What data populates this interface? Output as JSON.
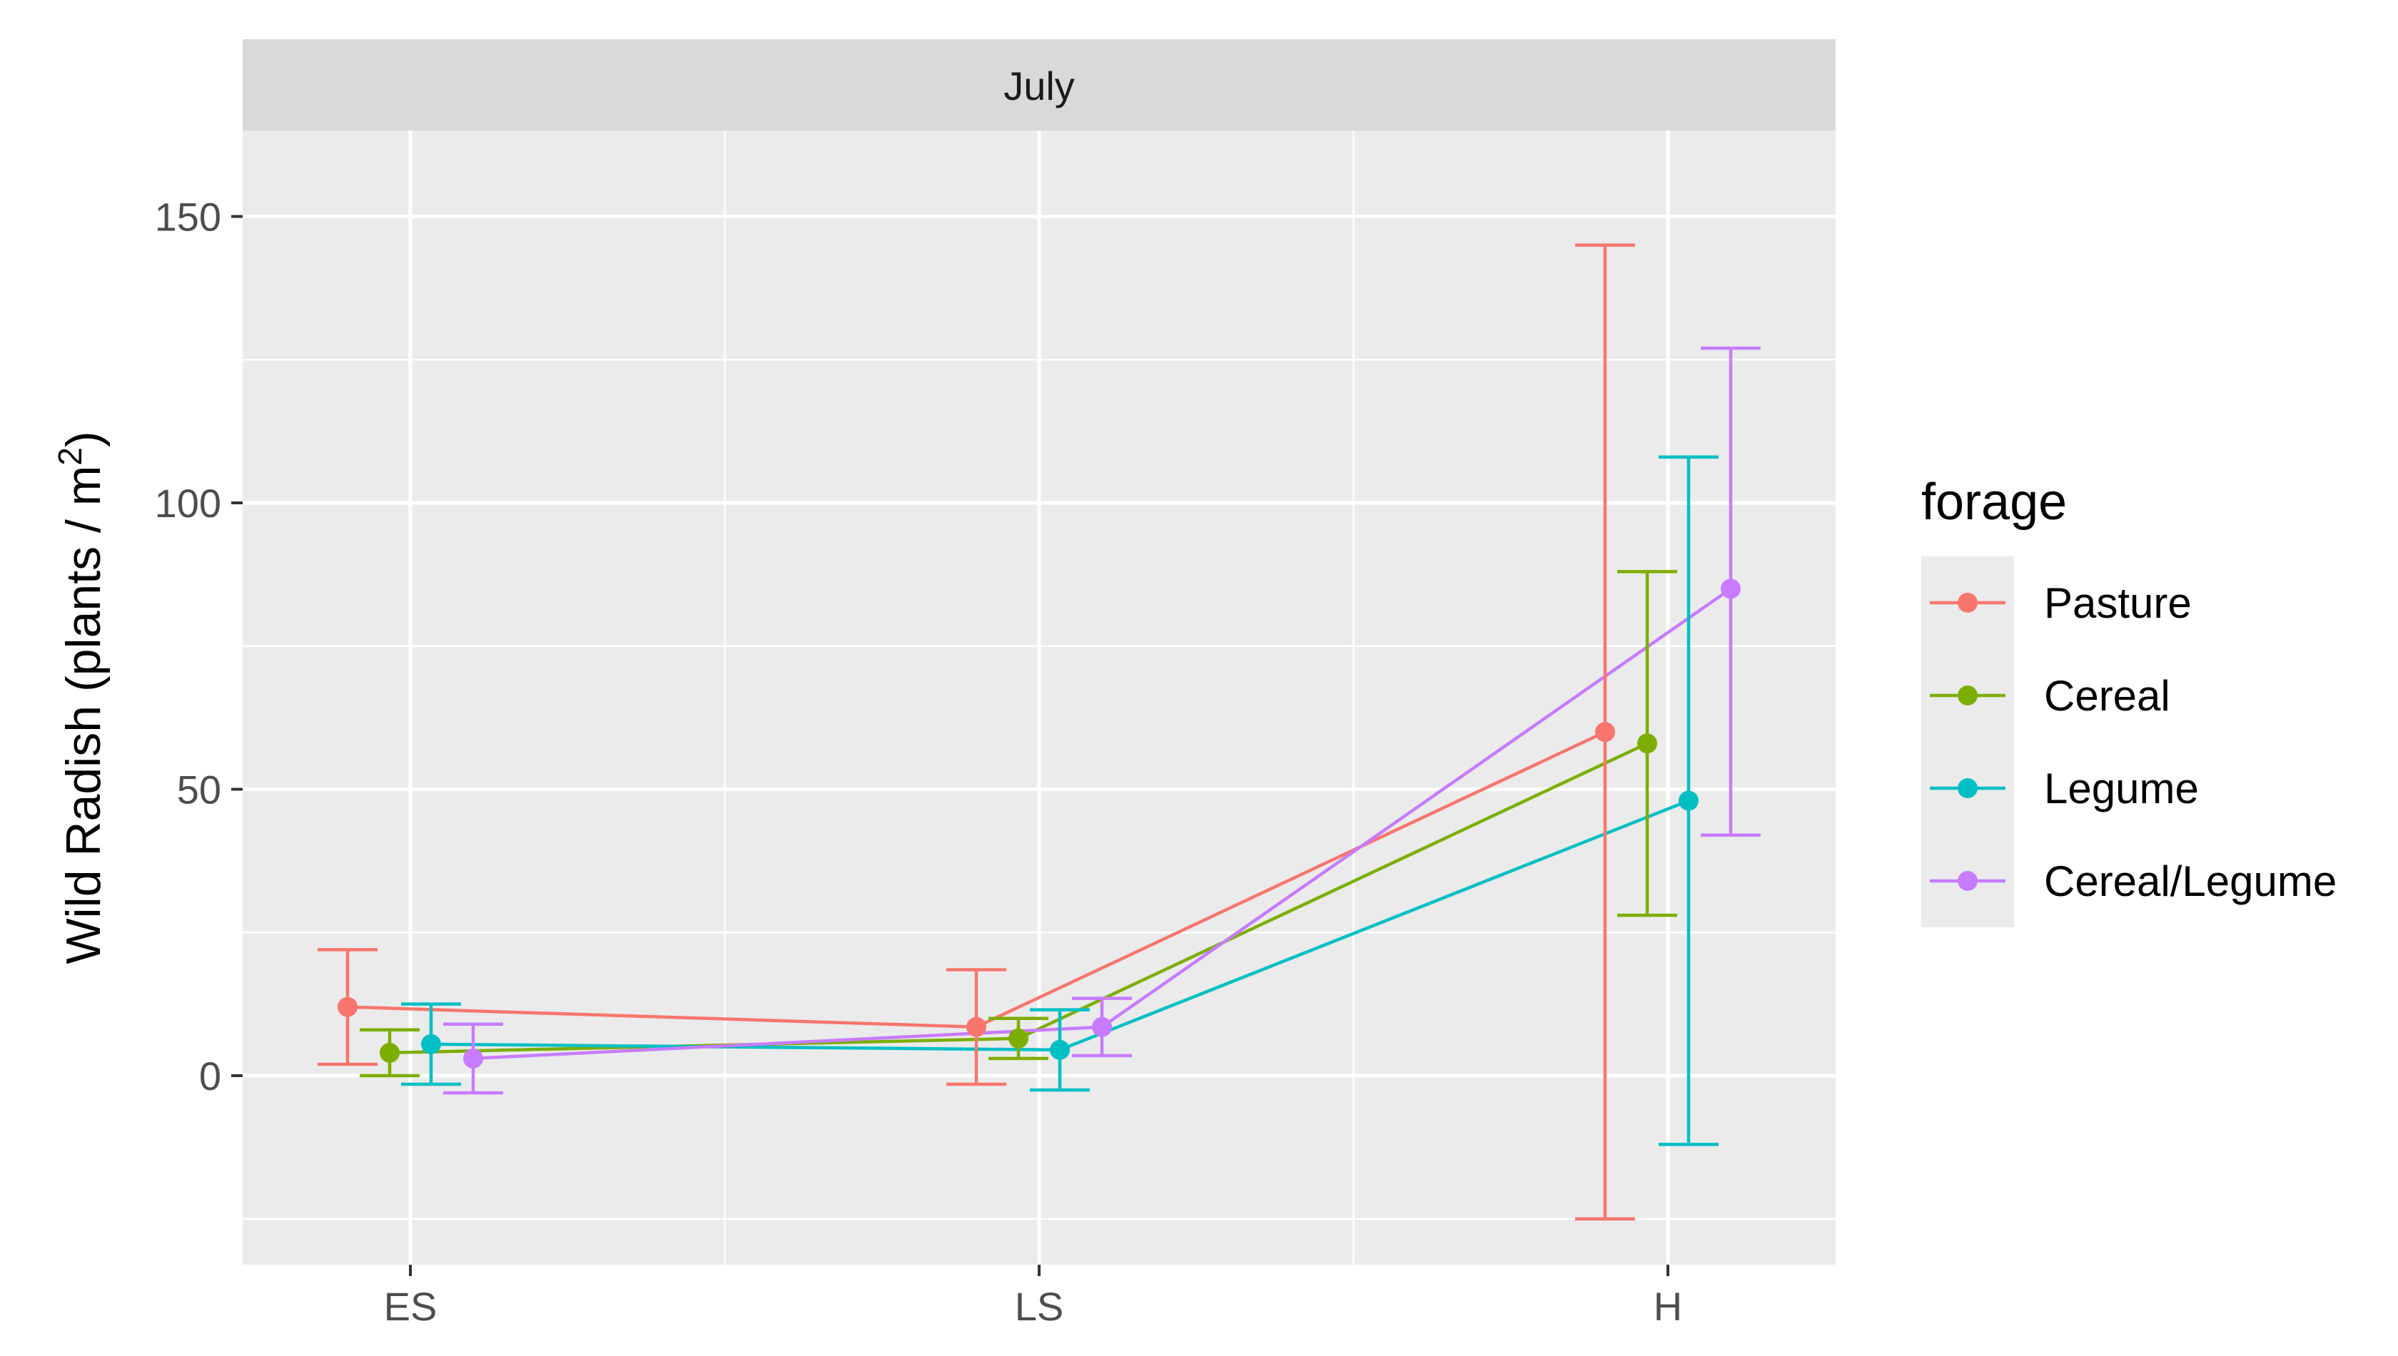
{
  "chart_data": {
    "type": "line",
    "panel_label": "July",
    "categories": [
      "ES",
      "LS",
      "H"
    ],
    "ylabel": "Wild Radish (plants / m²)",
    "ylabel_main": "Wild Radish (plants / m",
    "ylabel_sup": "2",
    "ylabel_end": ")",
    "xlabel": "",
    "ylim": [
      -33,
      165
    ],
    "yticks": [
      0,
      50,
      100,
      150
    ],
    "grid": true,
    "error_bars": true,
    "legend": {
      "title": "forage",
      "position": "right"
    },
    "series": [
      {
        "name": "Pasture",
        "color": "#F8766D",
        "values": [
          12,
          8.5,
          60
        ],
        "lower": [
          2,
          -1.5,
          -25
        ],
        "upper": [
          22,
          18.5,
          145
        ]
      },
      {
        "name": "Cereal",
        "color": "#7CAE00",
        "values": [
          4,
          6.5,
          58
        ],
        "lower": [
          0,
          3,
          28
        ],
        "upper": [
          8,
          10,
          88
        ]
      },
      {
        "name": "Legume",
        "color": "#00BFC4",
        "values": [
          5.5,
          4.5,
          48
        ],
        "lower": [
          -1.5,
          -2.5,
          -12
        ],
        "upper": [
          12.5,
          11.5,
          108
        ]
      },
      {
        "name": "Cereal/Legume",
        "color": "#C77CFF",
        "values": [
          3,
          8.5,
          85
        ],
        "lower": [
          -3,
          3.5,
          42
        ],
        "upper": [
          9,
          13.5,
          127
        ]
      }
    ]
  }
}
